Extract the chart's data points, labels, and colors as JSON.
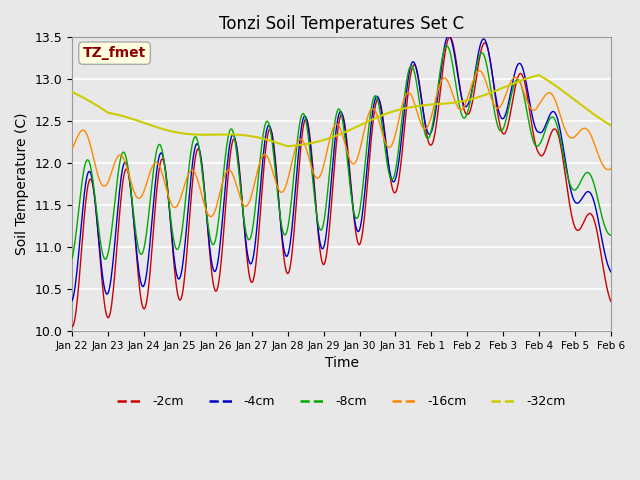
{
  "title": "Tonzi Soil Temperatures Set C",
  "xlabel": "Time",
  "ylabel": "Soil Temperature (C)",
  "ylim": [
    10.0,
    13.5
  ],
  "annotation_text": "TZ_fmet",
  "annotation_color": "#8B0000",
  "annotation_bg": "#FFFFE0",
  "bg_color": "#E8E8E8",
  "line_colors": {
    "-2cm": "#CC0000",
    "-4cm": "#0000CC",
    "-8cm": "#00AA00",
    "-16cm": "#FF8800",
    "-32cm": "#CCCC00"
  },
  "legend_labels": [
    "-2cm",
    "-4cm",
    "-8cm",
    "-16cm",
    "-32cm"
  ],
  "x_tick_labels": [
    "Jan 22",
    "Jan 23",
    "Jan 24",
    "Jan 25",
    "Jan 26",
    "Jan 27",
    "Jan 28",
    "Jan 29",
    "Jan 30",
    "Jan 31",
    "Feb 1",
    "Feb 2",
    "Feb 3",
    "Feb 4",
    "Feb 5",
    "Feb 6"
  ],
  "yticks": [
    10.0,
    10.5,
    11.0,
    11.5,
    12.0,
    12.5,
    13.0,
    13.5
  ]
}
